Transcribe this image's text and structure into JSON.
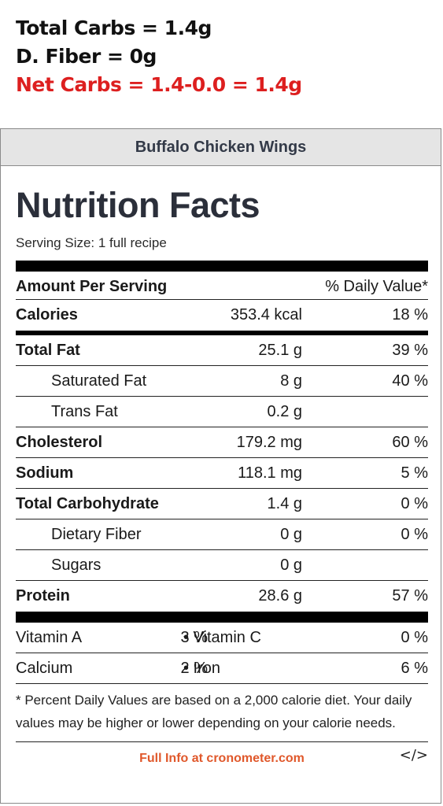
{
  "overlay": {
    "total_carbs": "Total Carbs = 1.4g",
    "fiber": "D. Fiber = 0g",
    "net_carbs": "Net Carbs = 1.4-0.0 = 1.4g"
  },
  "label": {
    "recipe_name": "Buffalo Chicken Wings",
    "title": "Nutrition Facts",
    "serving_size": "Serving Size: 1 full recipe",
    "amount_per_serving": "Amount Per Serving",
    "daily_value_header": "% Daily Value*",
    "calories": {
      "label": "Calories",
      "amount": "353.4 kcal",
      "dv": "18 %"
    },
    "nutrients": {
      "total_fat": {
        "label": "Total Fat",
        "amount": "25.1 g",
        "dv": "39 %"
      },
      "saturated_fat": {
        "label": "Saturated Fat",
        "amount": "8 g",
        "dv": "40 %"
      },
      "trans_fat": {
        "label": "Trans Fat",
        "amount": "0.2 g",
        "dv": ""
      },
      "cholesterol": {
        "label": "Cholesterol",
        "amount": "179.2 mg",
        "dv": "60 %"
      },
      "sodium": {
        "label": "Sodium",
        "amount": "118.1 mg",
        "dv": "5 %"
      },
      "total_carbohydrate": {
        "label": "Total Carbohydrate",
        "amount": "1.4 g",
        "dv": "0 %"
      },
      "dietary_fiber": {
        "label": "Dietary Fiber",
        "amount": "0 g",
        "dv": "0 %"
      },
      "sugars": {
        "label": "Sugars",
        "amount": "0 g",
        "dv": ""
      },
      "protein": {
        "label": "Protein",
        "amount": "28.6 g",
        "dv": "57 %"
      }
    },
    "vitamins": {
      "vitamin_a": {
        "label": "Vitamin A",
        "dv": "3 %"
      },
      "vitamin_c": {
        "label": "• Vitamin C",
        "dv": "0 %"
      },
      "calcium": {
        "label": "Calcium",
        "dv": "2 %"
      },
      "iron": {
        "label": "• Iron",
        "dv": "6 %"
      }
    },
    "footnote": "* Percent Daily Values are based on a 2,000 calorie diet. Your daily values may be higher or lower depending on your calorie needs.",
    "footer_link": "Full Info at cronometer.com",
    "embed_code": "</>"
  },
  "colors": {
    "net_carbs": "#dd1f1f",
    "header_bg": "#e5e5e5",
    "footer_link": "#e0582b"
  }
}
